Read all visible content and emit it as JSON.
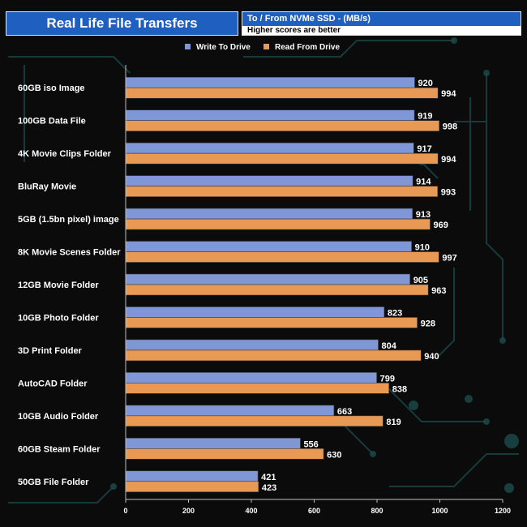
{
  "header": {
    "title": "Real Life File Transfers",
    "subtitle": "To /  From NVMe  SSD - (MB/s)",
    "note": "Higher scores are better"
  },
  "colors": {
    "background": "#0b0b0b",
    "header_blue": "#1f5fbf",
    "write": "#7f97d6",
    "read": "#e89a55",
    "circuit": "#1c4b4c"
  },
  "chart_data": {
    "type": "bar",
    "orientation": "horizontal",
    "title": "Real Life File Transfers",
    "subtitle": "To /  From NVMe  SSD - (MB/s)",
    "xlabel": "",
    "ylabel": "",
    "xlim": [
      0,
      1200
    ],
    "xticks": [
      0,
      200,
      400,
      600,
      800,
      1000,
      1200
    ],
    "grid": false,
    "legend_position": "top",
    "categories": [
      "60GB iso Image",
      "100GB Data File",
      "4K Movie Clips Folder",
      "BluRay Movie",
      "5GB (1.5bn pixel) image",
      "8K Movie Scenes Folder",
      "12GB Movie Folder",
      "10GB Photo Folder",
      "3D Print Folder",
      "AutoCAD Folder",
      "10GB Audio Folder",
      "60GB Steam Folder",
      "50GB File Folder"
    ],
    "series": [
      {
        "name": "Write To  Drive",
        "color": "#7f97d6",
        "values": [
          920,
          919,
          917,
          914,
          913,
          910,
          905,
          823,
          804,
          799,
          663,
          556,
          421
        ]
      },
      {
        "name": "Read From  Drive",
        "color": "#e89a55",
        "values": [
          994,
          998,
          994,
          993,
          969,
          997,
          963,
          928,
          940,
          838,
          819,
          630,
          423
        ]
      }
    ]
  }
}
